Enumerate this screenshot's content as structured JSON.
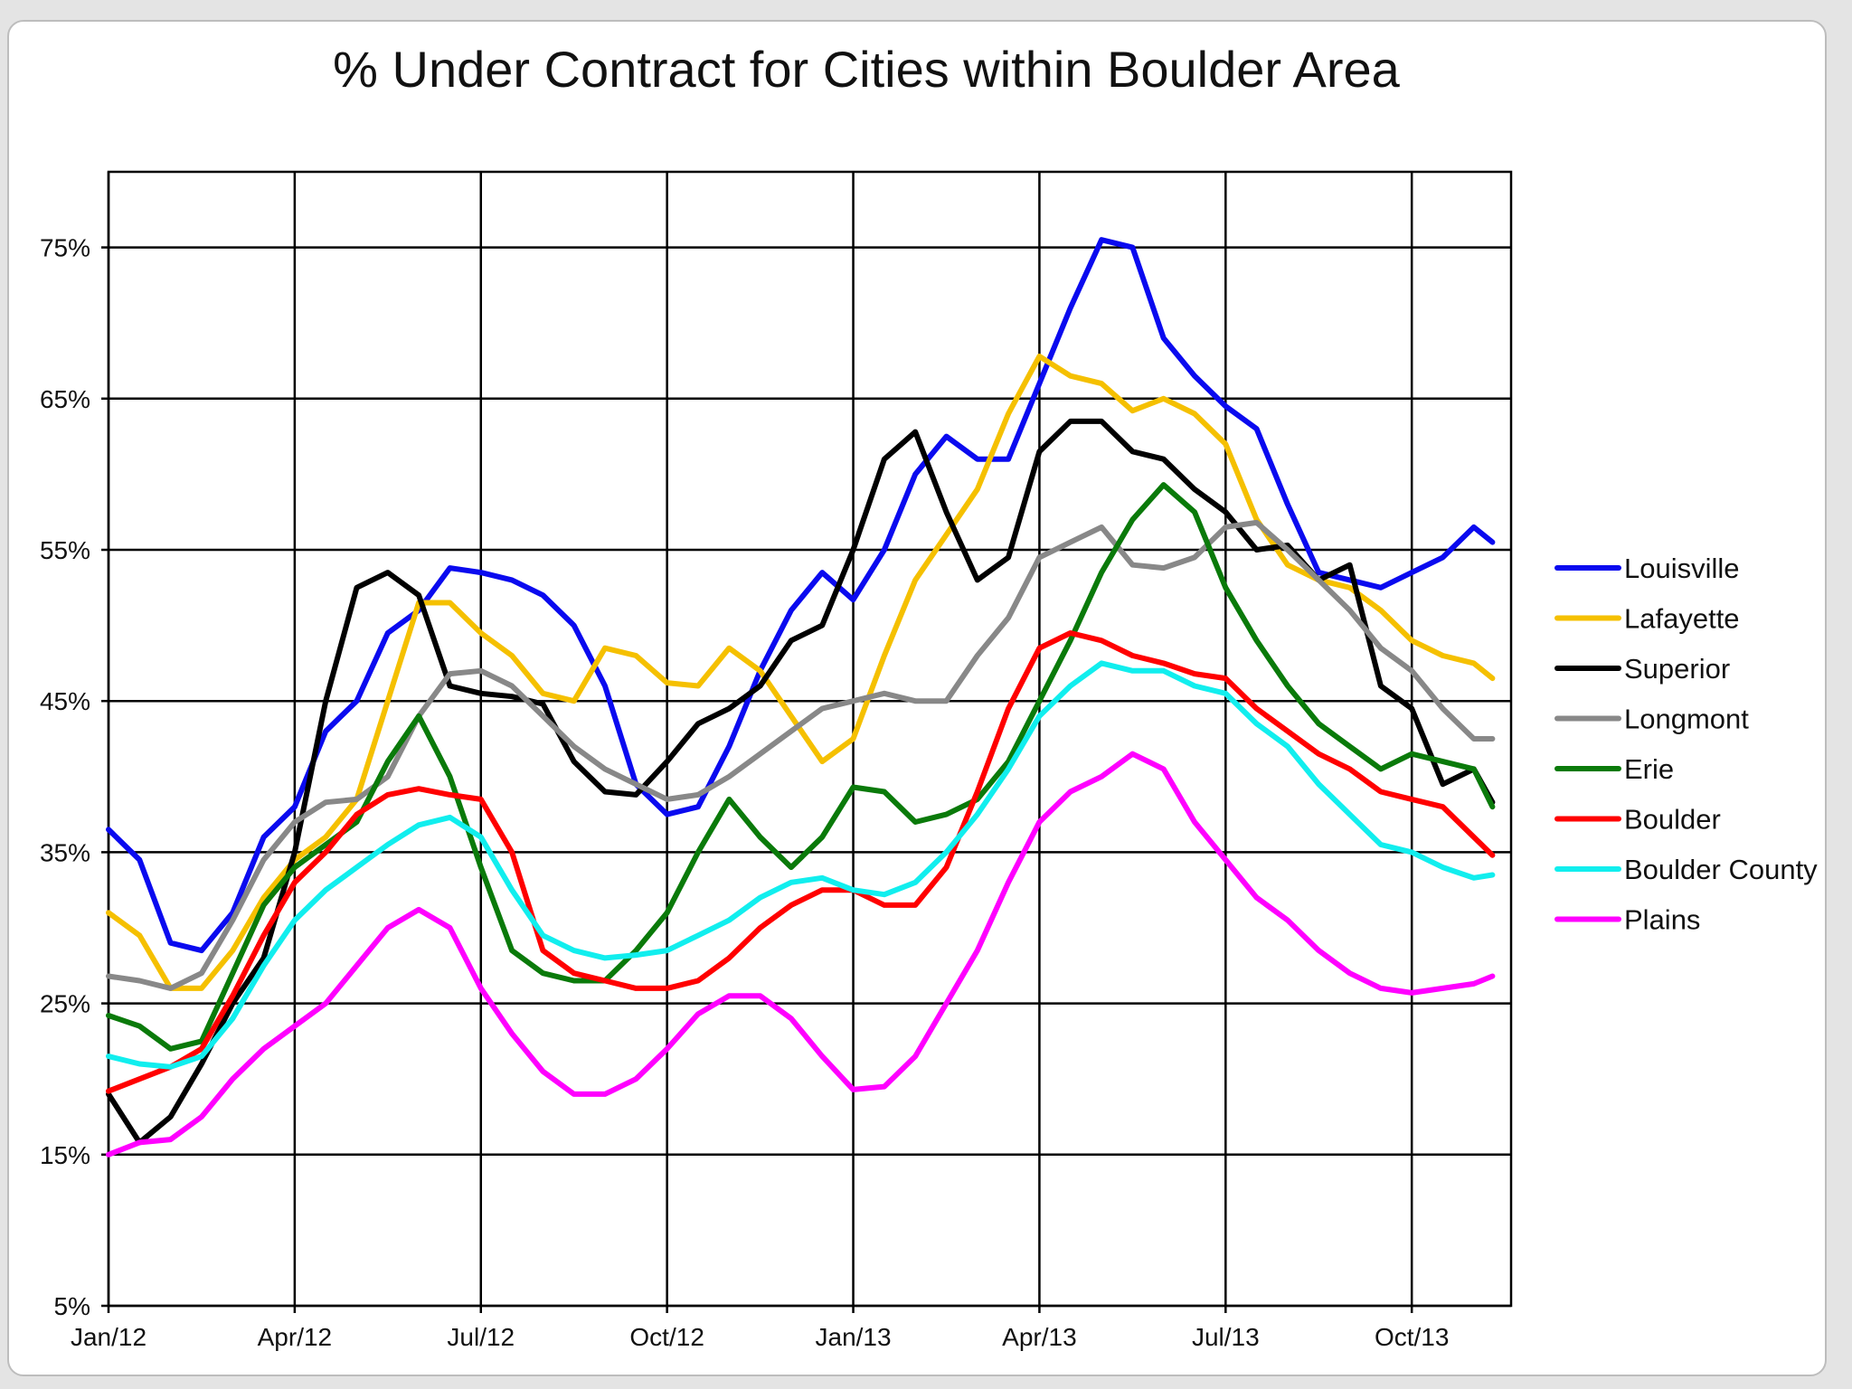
{
  "chart_data": {
    "type": "line",
    "title": "% Under Contract for Cities within  Boulder Area",
    "xlabel": "",
    "ylabel": "",
    "ylim": [
      5,
      80
    ],
    "xlim": [
      0,
      22.6
    ],
    "x_unit": "months since Jan/12",
    "grid": true,
    "legend_position": "right",
    "x_ticks": [
      {
        "x": 0,
        "label": "Jan/12"
      },
      {
        "x": 3,
        "label": "Apr/12"
      },
      {
        "x": 6,
        "label": "Jul/12"
      },
      {
        "x": 9,
        "label": "Oct/12"
      },
      {
        "x": 12,
        "label": "Jan/13"
      },
      {
        "x": 15,
        "label": "Apr/13"
      },
      {
        "x": 18,
        "label": "Jul/13"
      },
      {
        "x": 21,
        "label": "Oct/13"
      }
    ],
    "y_ticks": [
      {
        "y": 5,
        "label": "5%"
      },
      {
        "y": 15,
        "label": "15%"
      },
      {
        "y": 25,
        "label": "25%"
      },
      {
        "y": 35,
        "label": "35%"
      },
      {
        "y": 45,
        "label": "45%"
      },
      {
        "y": 55,
        "label": "55%"
      },
      {
        "y": 65,
        "label": "65%"
      },
      {
        "y": 75,
        "label": "75%"
      }
    ],
    "x": [
      0,
      0.5,
      1,
      1.5,
      2,
      2.5,
      3,
      3.5,
      4,
      4.5,
      5,
      5.5,
      6,
      6.5,
      7,
      7.5,
      8,
      8.5,
      9,
      9.5,
      10,
      10.5,
      11,
      11.5,
      12,
      12.5,
      13,
      13.5,
      14,
      14.5,
      15,
      15.5,
      16,
      16.5,
      17,
      17.5,
      18,
      18.5,
      19,
      19.5,
      20,
      20.5,
      21,
      21.5,
      22,
      22.3
    ],
    "series": [
      {
        "name": "Louisville",
        "color": "#0a0aef",
        "values": [
          36.5,
          34.5,
          29,
          28.5,
          31,
          36,
          38,
          43,
          45,
          49.5,
          51,
          53.8,
          53.5,
          53,
          52,
          50,
          46,
          39.5,
          37.5,
          38,
          42,
          47,
          51,
          53.5,
          51.7,
          55,
          60,
          62.5,
          61,
          61,
          66,
          71,
          75.5,
          75,
          69,
          66.5,
          64.5,
          63,
          58,
          53.5,
          53,
          52.5,
          53.5,
          54.5,
          56.5,
          55.5
        ]
      },
      {
        "name": "Lafayette",
        "color": "#f5c000",
        "values": [
          31,
          29.5,
          26,
          26,
          28.5,
          32,
          34.5,
          36,
          38.5,
          45,
          51.5,
          51.5,
          49.5,
          48,
          45.5,
          45,
          48.5,
          48,
          46.2,
          46,
          48.5,
          47,
          44,
          41,
          42.5,
          48,
          53,
          56,
          59,
          64,
          67.8,
          66.5,
          66,
          64.2,
          65,
          64,
          62,
          57,
          54,
          53,
          52.5,
          51,
          49,
          48,
          47.5,
          46.5
        ]
      },
      {
        "name": "Superior",
        "color": "#000000",
        "values": [
          19,
          15.8,
          17.5,
          21,
          25,
          28,
          35,
          45,
          52.5,
          53.5,
          52,
          46,
          45.5,
          45.3,
          44.8,
          41,
          39,
          38.8,
          41,
          43.5,
          44.5,
          46,
          49,
          50,
          55,
          61,
          62.8,
          57.5,
          53,
          54.5,
          61.5,
          63.5,
          63.5,
          61.5,
          61,
          59,
          57.5,
          55,
          55.3,
          53,
          54,
          46,
          44.5,
          39.5,
          40.5,
          38.3
        ]
      },
      {
        "name": "Longmont",
        "color": "#888888",
        "values": [
          26.8,
          26.5,
          26,
          27,
          30.5,
          34.5,
          37,
          38.3,
          38.5,
          40,
          44,
          46.8,
          47,
          46,
          44,
          42,
          40.5,
          39.5,
          38.5,
          38.8,
          40,
          41.5,
          43,
          44.5,
          45,
          45.5,
          45,
          45,
          48,
          50.5,
          54.5,
          55.5,
          56.5,
          54,
          53.8,
          54.5,
          56.5,
          56.8,
          55,
          53,
          51,
          48.5,
          47,
          44.5,
          42.5,
          42.5
        ]
      },
      {
        "name": "Erie",
        "color": "#0a7a0a",
        "values": [
          24.2,
          23.5,
          22,
          22.5,
          27,
          31.5,
          34,
          35.5,
          37,
          41,
          44,
          40,
          34,
          28.5,
          27,
          26.5,
          26.5,
          28.5,
          31,
          35,
          38.5,
          36,
          34,
          36,
          39.3,
          39,
          37,
          37.5,
          38.5,
          41,
          45,
          49,
          53.5,
          57,
          59.3,
          57.5,
          52.5,
          49,
          46,
          43.5,
          42,
          40.5,
          41.5,
          41,
          40.5,
          38
        ]
      },
      {
        "name": "Boulder",
        "color": "#ff0000",
        "values": [
          19.2,
          20,
          20.8,
          22,
          25.5,
          29.5,
          33,
          35,
          37.5,
          38.8,
          39.2,
          38.8,
          38.5,
          35,
          28.5,
          27,
          26.5,
          26,
          26,
          26.5,
          28,
          30,
          31.5,
          32.5,
          32.5,
          31.5,
          31.5,
          34,
          39,
          44.5,
          48.5,
          49.5,
          49,
          48,
          47.5,
          46.8,
          46.5,
          44.5,
          43,
          41.5,
          40.5,
          39,
          38.5,
          38,
          36,
          34.8
        ]
      },
      {
        "name": "Boulder County",
        "color": "#11eeee",
        "values": [
          21.5,
          21,
          20.8,
          21.5,
          24,
          27.5,
          30.5,
          32.5,
          34,
          35.5,
          36.8,
          37.3,
          36,
          32.5,
          29.5,
          28.5,
          28,
          28.2,
          28.5,
          29.5,
          30.5,
          32,
          33,
          33.3,
          32.5,
          32.2,
          33,
          35,
          37.5,
          40.5,
          44,
          46,
          47.5,
          47,
          47,
          46,
          45.5,
          43.5,
          42,
          39.5,
          37.5,
          35.5,
          35,
          34,
          33.3,
          33.5
        ]
      },
      {
        "name": "Plains",
        "color": "#ff00ff",
        "values": [
          15,
          15.8,
          16,
          17.5,
          20,
          22,
          23.5,
          25,
          27.5,
          30,
          31.2,
          30,
          26,
          23,
          20.5,
          19,
          19,
          20,
          22,
          24.3,
          25.5,
          25.5,
          24,
          21.5,
          19.3,
          19.5,
          21.5,
          25,
          28.5,
          33,
          37,
          39,
          40,
          41.5,
          40.5,
          37,
          34.5,
          32,
          30.5,
          28.5,
          27,
          26,
          25.7,
          26,
          26.3,
          26.8
        ]
      }
    ]
  }
}
